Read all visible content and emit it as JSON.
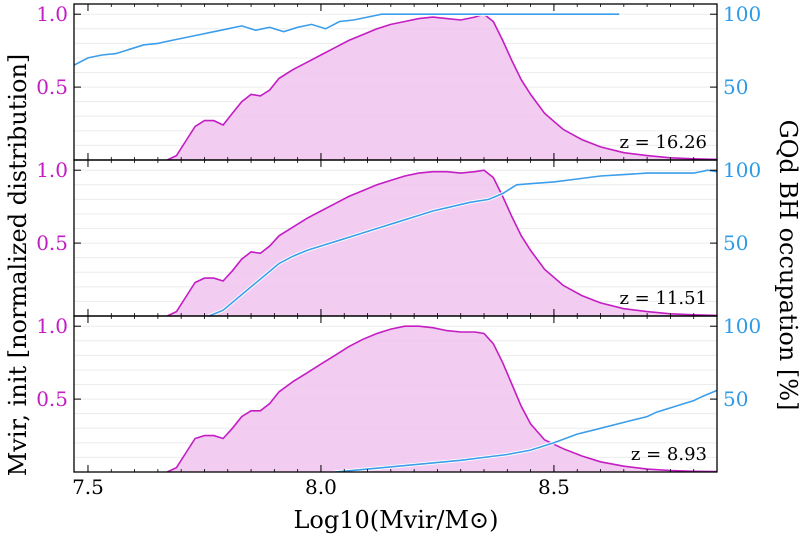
{
  "chart_data": {
    "type": "area",
    "title": "",
    "xlabel": "Log10(Mvir/M⊙)",
    "ylabel_left": "Mvir, init [normalized distribution]",
    "ylabel_right": "GQd BH occupation [%]",
    "xlim": [
      7.47,
      8.85
    ],
    "xticks": [
      7.5,
      8.0,
      8.5
    ],
    "xtick_labels": [
      "7.5",
      "8.0",
      "8.5"
    ],
    "left_ylim": [
      0,
      1.07
    ],
    "left_yticks": [
      0.5,
      1.0
    ],
    "left_ytick_labels": [
      "0.5",
      "1.0"
    ],
    "right_ylim": [
      0,
      107
    ],
    "right_yticks": [
      50,
      100
    ],
    "right_ytick_labels": [
      "50",
      "100"
    ],
    "colors": {
      "distribution": "#c31ec3",
      "fill": "#f2c6ef",
      "occupation": "#3c9eea"
    },
    "panels": [
      {
        "z_label": "z = 16.26",
        "distribution": {
          "x": [
            7.67,
            7.69,
            7.71,
            7.73,
            7.75,
            7.77,
            7.79,
            7.81,
            7.83,
            7.85,
            7.87,
            7.89,
            7.91,
            7.94,
            7.97,
            8.0,
            8.03,
            8.06,
            8.09,
            8.12,
            8.15,
            8.18,
            8.21,
            8.24,
            8.27,
            8.3,
            8.33,
            8.35,
            8.37,
            8.39,
            8.41,
            8.43,
            8.45,
            8.48,
            8.52,
            8.56,
            8.6,
            8.65,
            8.7,
            8.75,
            8.8,
            8.85
          ],
          "y": [
            0.0,
            0.03,
            0.13,
            0.23,
            0.27,
            0.27,
            0.24,
            0.32,
            0.4,
            0.45,
            0.44,
            0.48,
            0.56,
            0.62,
            0.67,
            0.72,
            0.77,
            0.82,
            0.86,
            0.9,
            0.93,
            0.95,
            0.97,
            0.98,
            0.97,
            0.96,
            0.98,
            1.0,
            0.95,
            0.82,
            0.68,
            0.55,
            0.45,
            0.32,
            0.21,
            0.14,
            0.09,
            0.05,
            0.03,
            0.015,
            0.008,
            0.004
          ]
        },
        "occupation": {
          "x": [
            7.47,
            7.5,
            7.53,
            7.56,
            7.59,
            7.62,
            7.65,
            7.68,
            7.71,
            7.74,
            7.77,
            7.8,
            7.83,
            7.86,
            7.89,
            7.92,
            7.95,
            7.98,
            8.01,
            8.04,
            8.07,
            8.1,
            8.13,
            8.16,
            8.2,
            8.3,
            8.4,
            8.5,
            8.64
          ],
          "y": [
            65,
            70,
            72,
            73,
            76,
            79,
            80,
            82,
            84,
            86,
            88,
            90,
            92,
            89,
            91,
            88,
            91,
            93,
            90,
            95,
            96,
            98,
            100,
            100,
            100,
            100,
            100,
            100,
            100
          ]
        }
      },
      {
        "z_label": "z = 11.51",
        "distribution": {
          "x": [
            7.67,
            7.69,
            7.71,
            7.73,
            7.75,
            7.77,
            7.79,
            7.81,
            7.83,
            7.85,
            7.87,
            7.89,
            7.91,
            7.94,
            7.97,
            8.0,
            8.03,
            8.06,
            8.09,
            8.12,
            8.15,
            8.18,
            8.21,
            8.24,
            8.27,
            8.3,
            8.33,
            8.35,
            8.37,
            8.39,
            8.41,
            8.43,
            8.45,
            8.48,
            8.52,
            8.56,
            8.6,
            8.65,
            8.7,
            8.75,
            8.8,
            8.85
          ],
          "y": [
            0.0,
            0.03,
            0.13,
            0.23,
            0.26,
            0.26,
            0.24,
            0.31,
            0.39,
            0.44,
            0.43,
            0.48,
            0.55,
            0.61,
            0.67,
            0.72,
            0.77,
            0.82,
            0.86,
            0.9,
            0.93,
            0.96,
            0.98,
            0.99,
            0.99,
            0.98,
            0.99,
            1.0,
            0.95,
            0.82,
            0.68,
            0.55,
            0.45,
            0.32,
            0.21,
            0.14,
            0.09,
            0.05,
            0.03,
            0.015,
            0.008,
            0.004
          ]
        },
        "occupation": {
          "x": [
            7.76,
            7.79,
            7.82,
            7.85,
            7.88,
            7.91,
            7.94,
            7.97,
            8.0,
            8.04,
            8.08,
            8.12,
            8.16,
            8.2,
            8.24,
            8.28,
            8.32,
            8.36,
            8.39,
            8.42,
            8.46,
            8.5,
            8.55,
            8.6,
            8.65,
            8.7,
            8.75,
            8.8,
            8.83,
            8.85
          ],
          "y": [
            0,
            4,
            12,
            20,
            28,
            36,
            41,
            45,
            48,
            52,
            56,
            60,
            64,
            68,
            72,
            75,
            78,
            80,
            84,
            90,
            91,
            92,
            94,
            96,
            97,
            98,
            98,
            98,
            100,
            99
          ]
        }
      },
      {
        "z_label": "z = 8.93",
        "distribution": {
          "x": [
            7.67,
            7.69,
            7.71,
            7.73,
            7.75,
            7.77,
            7.79,
            7.81,
            7.83,
            7.85,
            7.87,
            7.89,
            7.91,
            7.94,
            7.97,
            8.0,
            8.03,
            8.06,
            8.09,
            8.12,
            8.15,
            8.18,
            8.21,
            8.24,
            8.27,
            8.3,
            8.33,
            8.35,
            8.37,
            8.39,
            8.41,
            8.43,
            8.45,
            8.48,
            8.52,
            8.56,
            8.6,
            8.65,
            8.7,
            8.75,
            8.8,
            8.85
          ],
          "y": [
            0.0,
            0.03,
            0.13,
            0.23,
            0.25,
            0.25,
            0.23,
            0.3,
            0.38,
            0.42,
            0.42,
            0.47,
            0.55,
            0.62,
            0.68,
            0.74,
            0.8,
            0.86,
            0.91,
            0.95,
            0.98,
            1.0,
            1.0,
            0.99,
            0.97,
            0.96,
            0.96,
            0.95,
            0.88,
            0.75,
            0.6,
            0.45,
            0.33,
            0.22,
            0.16,
            0.11,
            0.07,
            0.04,
            0.02,
            0.01,
            0.005,
            0.003
          ]
        },
        "occupation": {
          "x": [
            8.03,
            8.1,
            8.2,
            8.3,
            8.4,
            8.45,
            8.5,
            8.55,
            8.6,
            8.65,
            8.7,
            8.72,
            8.75,
            8.78,
            8.8,
            8.82,
            8.85
          ],
          "y": [
            0,
            2,
            5,
            8,
            12,
            15,
            20,
            26,
            30,
            34,
            38,
            41,
            44,
            47,
            49,
            52,
            56
          ]
        }
      }
    ]
  }
}
